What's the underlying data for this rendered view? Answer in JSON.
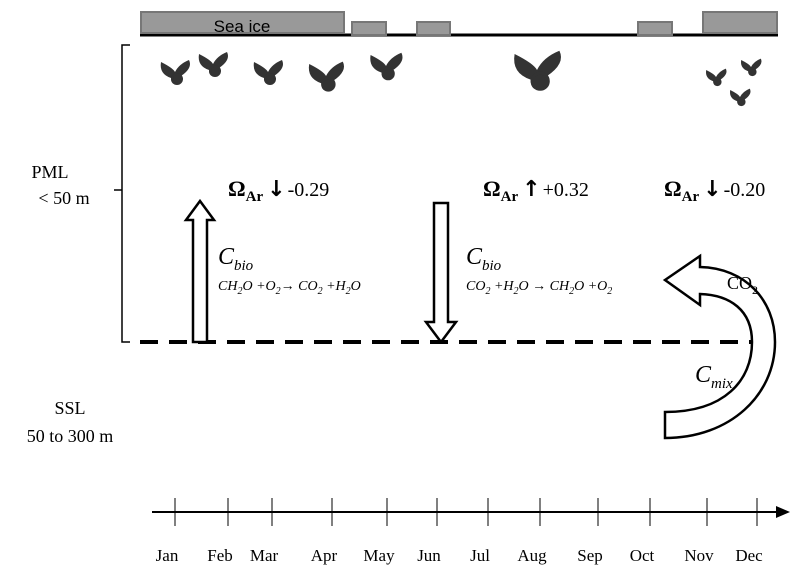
{
  "sea_ice_label": "Sea ice",
  "layers": {
    "pml": {
      "name": "PML",
      "depth": "< 50 m"
    },
    "ssl": {
      "name": "SSL",
      "depth": "50 to 300 m"
    }
  },
  "omega": [
    {
      "symbol": "Ω",
      "sub": "Ar",
      "arrow": "↓",
      "value": "-0.29"
    },
    {
      "symbol": "Ω",
      "sub": "Ar",
      "arrow": "↑",
      "value": "+0.32"
    },
    {
      "symbol": "Ω",
      "sub": "Ar",
      "arrow": "↓",
      "value": "-0.20"
    }
  ],
  "fluxes": [
    {
      "symbol": "C",
      "sub": "bio",
      "reaction": [
        "CH",
        "2",
        "O +O",
        "2",
        "→ CO",
        "2",
        " +H",
        "2",
        "O"
      ]
    },
    {
      "symbol": "C",
      "sub": "bio",
      "reaction": [
        "CO",
        "2",
        " +H",
        "2",
        "O → CH",
        "2",
        "O +O",
        "2"
      ]
    }
  ],
  "mixing": {
    "symbol": "C",
    "sub": "mix",
    "gas": "CO",
    "gas_sub": "2"
  },
  "months": [
    "Jan",
    "Feb",
    "Mar",
    "Apr",
    "May",
    "Jun",
    "Jul",
    "Aug",
    "Sep",
    "Oct",
    "Nov",
    "Dec"
  ]
}
